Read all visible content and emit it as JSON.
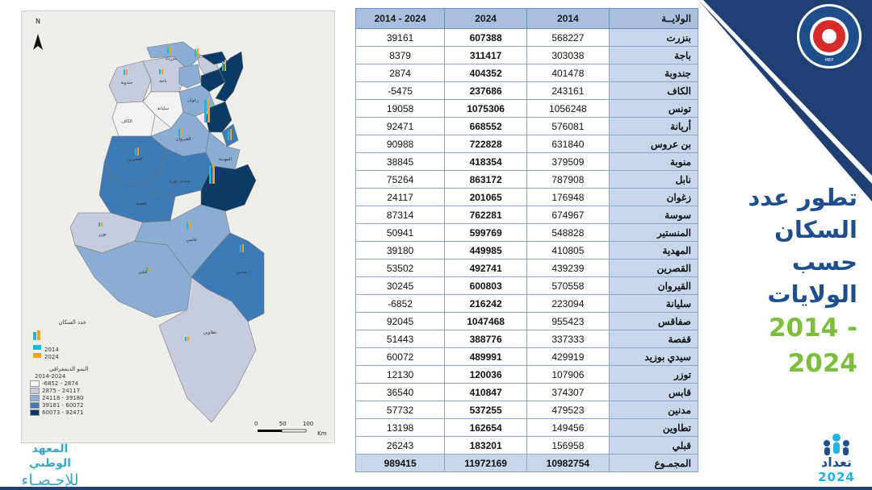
{
  "map": {
    "north_label": "N",
    "legend_title": "عدد السكان",
    "legend_bar_2014": "2014",
    "legend_bar_2024": "2024",
    "legend_growth_title": "النمو الديمغرافي",
    "legend_growth_period": "2014-2024",
    "classes": [
      {
        "label": "-6852 - 2874",
        "color": "#f3f1f4"
      },
      {
        "label": "2875 - 24117",
        "color": "#c7cbe0"
      },
      {
        "label": "24118 - 39180",
        "color": "#8aaed3"
      },
      {
        "label": "39181 - 60072",
        "color": "#3e7bb6"
      },
      {
        "label": "60073 - 92471",
        "color": "#0b3a66"
      }
    ],
    "scale_labels": [
      "0",
      "50",
      "100"
    ],
    "scale_unit": "Km",
    "region_labels": [
      "بنزرت",
      "جندوبة",
      "باجة",
      "الكاف",
      "سليانة",
      "زغوان",
      "القيروان",
      "القصرين",
      "سيدي بوزيد",
      "صفاقس",
      "قفصة",
      "توزر",
      "قبلي",
      "قابس",
      "مدنين",
      "تطاوين",
      "المهدية",
      "نابل",
      "سوسة"
    ],
    "bar_2014_color": "#22b3e6",
    "bar_2024_color": "#f0a21b"
  },
  "table": {
    "headers": [
      "2014 - 2024",
      "2024",
      "2014",
      "الولايــة"
    ],
    "rows": [
      {
        "gov": "بنزرت",
        "p2014": "568227",
        "p2024": "607388",
        "diff": "39161"
      },
      {
        "gov": "باجة",
        "p2014": "303038",
        "p2024": "311417",
        "diff": "8379"
      },
      {
        "gov": "جندوبة",
        "p2014": "401478",
        "p2024": "404352",
        "diff": "2874"
      },
      {
        "gov": "الكاف",
        "p2014": "243161",
        "p2024": "237686",
        "diff": "-5475"
      },
      {
        "gov": "تونس",
        "p2014": "1056248",
        "p2024": "1075306",
        "diff": "19058"
      },
      {
        "gov": "أريانة",
        "p2014": "576081",
        "p2024": "668552",
        "diff": "92471"
      },
      {
        "gov": "بن عروس",
        "p2014": "631840",
        "p2024": "722828",
        "diff": "90988"
      },
      {
        "gov": "منوبة",
        "p2014": "379509",
        "p2024": "418354",
        "diff": "38845"
      },
      {
        "gov": "نابل",
        "p2014": "787908",
        "p2024": "863172",
        "diff": "75264"
      },
      {
        "gov": "زغوان",
        "p2014": "176948",
        "p2024": "201065",
        "diff": "24117"
      },
      {
        "gov": "سوسة",
        "p2014": "674967",
        "p2024": "762281",
        "diff": "87314"
      },
      {
        "gov": "المنستير",
        "p2014": "548828",
        "p2024": "599769",
        "diff": "50941"
      },
      {
        "gov": "المهدية",
        "p2014": "410805",
        "p2024": "449985",
        "diff": "39180"
      },
      {
        "gov": "القصرين",
        "p2014": "439239",
        "p2024": "492741",
        "diff": "53502"
      },
      {
        "gov": "القيروان",
        "p2014": "570558",
        "p2024": "600803",
        "diff": "30245"
      },
      {
        "gov": "سليانة",
        "p2014": "223094",
        "p2024": "216242",
        "diff": "-6852"
      },
      {
        "gov": "صفاقس",
        "p2014": "955423",
        "p2024": "1047468",
        "diff": "92045"
      },
      {
        "gov": "قفصة",
        "p2014": "337333",
        "p2024": "388776",
        "diff": "51443"
      },
      {
        "gov": "سيدي بوزيد",
        "p2014": "429919",
        "p2024": "489991",
        "diff": "60072"
      },
      {
        "gov": "توزر",
        "p2014": "107906",
        "p2024": "120036",
        "diff": "12130"
      },
      {
        "gov": "قابس",
        "p2014": "374307",
        "p2024": "410847",
        "diff": "36540"
      },
      {
        "gov": "مدنين",
        "p2014": "479523",
        "p2024": "537255",
        "diff": "57732"
      },
      {
        "gov": "تطاوين",
        "p2014": "149456",
        "p2024": "162654",
        "diff": "13198"
      },
      {
        "gov": "قبلي",
        "p2014": "156958",
        "p2024": "183201",
        "diff": "26243"
      }
    ],
    "total": {
      "gov": "المجمـوع",
      "p2014": "10982754",
      "p2024": "11972169",
      "diff": "989415"
    }
  },
  "title": {
    "line1": "تطور عدد السكان",
    "line2": "حسب الولايات",
    "line3": "2014 - 2024"
  },
  "ministry_logo": {
    "caption": "MEP"
  },
  "ins_logo": {
    "line1": "المعهد الوطني",
    "line2": "للإحـصـاء"
  },
  "census_logo": {
    "word": "تعداد",
    "year": "2024"
  },
  "colors": {
    "navy": "#1f3f73",
    "title_blue": "#1f4e8c",
    "title_green": "#7cbd3c",
    "header_blue": "#a8c0de"
  }
}
